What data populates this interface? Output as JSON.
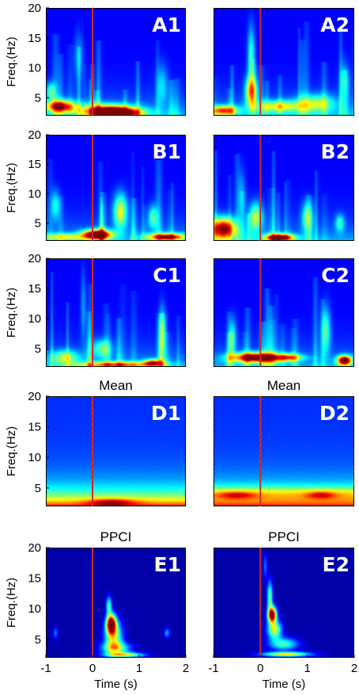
{
  "colors": {
    "background": "#00007f",
    "onset_line": "#cc2a2a",
    "colormap": "jet"
  },
  "axes": {
    "ylabel": "Freq.(Hz)",
    "xlabel": "Time (s)",
    "yticks": [
      5,
      10,
      15,
      20
    ],
    "xticks": [
      -1,
      0,
      1,
      2
    ]
  },
  "chart_data": [
    {
      "id": "A1",
      "type": "heatmap",
      "label": "A1",
      "title": "",
      "xlim": [
        -1,
        2
      ],
      "ylim": [
        2,
        20
      ],
      "onset_x": 0,
      "blobs": [
        {
          "x": 0.5,
          "y": 2.4,
          "sx": 0.5,
          "sy": 0.8,
          "v": 1.0
        },
        {
          "x": -0.7,
          "y": 3.5,
          "sx": 0.3,
          "sy": 1.0,
          "v": 0.75
        },
        {
          "x": -0.9,
          "y": 6,
          "sx": 0.1,
          "sy": 1.5,
          "v": 0.3
        },
        {
          "x": 0.3,
          "y": 3,
          "sx": 0.6,
          "sy": 1.0,
          "v": 0.45
        },
        {
          "x": 1.5,
          "y": 7,
          "sx": 0.12,
          "sy": 3.5,
          "v": 0.2
        },
        {
          "x": -0.3,
          "y": 12,
          "sx": 0.1,
          "sy": 4,
          "v": 0.15
        }
      ]
    },
    {
      "id": "A2",
      "type": "heatmap",
      "label": "A2",
      "title": "",
      "xlim": [
        -1,
        2
      ],
      "ylim": [
        2,
        20
      ],
      "onset_x": 0,
      "blobs": [
        {
          "x": -0.2,
          "y": 6,
          "sx": 0.12,
          "sy": 2.5,
          "v": 0.55
        },
        {
          "x": -0.2,
          "y": 12,
          "sx": 0.08,
          "sy": 5,
          "v": 0.3
        },
        {
          "x": -0.8,
          "y": 2.8,
          "sx": 0.3,
          "sy": 0.8,
          "v": 0.6
        },
        {
          "x": 0.4,
          "y": 3.5,
          "sx": 0.5,
          "sy": 1.0,
          "v": 0.4
        },
        {
          "x": 1.2,
          "y": 4,
          "sx": 0.4,
          "sy": 1.5,
          "v": 0.35
        },
        {
          "x": 1.8,
          "y": 8,
          "sx": 0.1,
          "sy": 3,
          "v": 0.2
        }
      ]
    },
    {
      "id": "B1",
      "type": "heatmap",
      "label": "B1",
      "title": "",
      "xlim": [
        -1,
        2
      ],
      "ylim": [
        2,
        20
      ],
      "onset_x": 0,
      "blobs": [
        {
          "x": 0.1,
          "y": 3,
          "sx": 0.3,
          "sy": 0.8,
          "v": 1.0
        },
        {
          "x": 1.6,
          "y": 2.6,
          "sx": 0.4,
          "sy": 0.6,
          "v": 0.75
        },
        {
          "x": -0.6,
          "y": 2.6,
          "sx": 0.5,
          "sy": 0.6,
          "v": 0.35
        },
        {
          "x": 0.6,
          "y": 7,
          "sx": 0.15,
          "sy": 3,
          "v": 0.45
        },
        {
          "x": -0.8,
          "y": 8,
          "sx": 0.1,
          "sy": 2.5,
          "v": 0.25
        },
        {
          "x": 1.3,
          "y": 6,
          "sx": 0.1,
          "sy": 2,
          "v": 0.3
        }
      ]
    },
    {
      "id": "B2",
      "type": "heatmap",
      "label": "B2",
      "title": "",
      "xlim": [
        -1,
        2
      ],
      "ylim": [
        2,
        20
      ],
      "onset_x": 0,
      "blobs": [
        {
          "x": -0.8,
          "y": 4,
          "sx": 0.25,
          "sy": 1.8,
          "v": 0.85
        },
        {
          "x": 0.4,
          "y": 2.5,
          "sx": 0.3,
          "sy": 0.6,
          "v": 0.9
        },
        {
          "x": -0.1,
          "y": 6,
          "sx": 0.15,
          "sy": 2.5,
          "v": 0.4
        },
        {
          "x": 1.0,
          "y": 6,
          "sx": 0.12,
          "sy": 2.5,
          "v": 0.3
        },
        {
          "x": 1.7,
          "y": 5,
          "sx": 0.1,
          "sy": 1.5,
          "v": 0.25
        },
        {
          "x": -0.4,
          "y": 10,
          "sx": 0.08,
          "sy": 4,
          "v": 0.15
        }
      ]
    },
    {
      "id": "C1",
      "type": "heatmap",
      "label": "C1",
      "title": "",
      "xlim": [
        -1,
        2
      ],
      "ylim": [
        2,
        20
      ],
      "onset_x": 0,
      "blobs": [
        {
          "x": 0.5,
          "y": 2.3,
          "sx": 0.8,
          "sy": 0.5,
          "v": 0.55
        },
        {
          "x": 1.3,
          "y": 2.6,
          "sx": 0.2,
          "sy": 0.6,
          "v": 0.6
        },
        {
          "x": -0.6,
          "y": 3.5,
          "sx": 0.3,
          "sy": 1.2,
          "v": 0.35
        },
        {
          "x": 1.5,
          "y": 8,
          "sx": 0.08,
          "sy": 4,
          "v": 0.3
        },
        {
          "x": 0.2,
          "y": 5,
          "sx": 0.2,
          "sy": 1.5,
          "v": 0.3
        },
        {
          "x": -0.2,
          "y": 12,
          "sx": 0.06,
          "sy": 6,
          "v": 0.15
        }
      ]
    },
    {
      "id": "C2",
      "type": "heatmap",
      "label": "C2",
      "title": "",
      "xlim": [
        -1,
        2
      ],
      "ylim": [
        2,
        20
      ],
      "onset_x": 0,
      "blobs": [
        {
          "x": -0.1,
          "y": 3.5,
          "sx": 0.5,
          "sy": 0.8,
          "v": 0.9
        },
        {
          "x": 1.8,
          "y": 3,
          "sx": 0.15,
          "sy": 0.8,
          "v": 0.95
        },
        {
          "x": 0.6,
          "y": 3.5,
          "sx": 0.3,
          "sy": 0.6,
          "v": 0.5
        },
        {
          "x": -0.6,
          "y": 7,
          "sx": 0.08,
          "sy": 3,
          "v": 0.25
        },
        {
          "x": 1.4,
          "y": 8,
          "sx": 0.1,
          "sy": 4,
          "v": 0.3
        }
      ]
    },
    {
      "id": "D1",
      "type": "heatmap",
      "label": "D1",
      "title": "Mean",
      "xlim": [
        -1,
        2
      ],
      "ylim": [
        2,
        20
      ],
      "onset_x": 0,
      "mode": "mean",
      "shift": 0.0,
      "blobs": [
        {
          "x": 0.4,
          "y": 2.6,
          "sx": 0.5,
          "sy": 0.6,
          "v": 0.3
        }
      ]
    },
    {
      "id": "D2",
      "type": "heatmap",
      "label": "D2",
      "title": "Mean",
      "xlim": [
        -1,
        2
      ],
      "ylim": [
        2,
        20
      ],
      "onset_x": 0,
      "mode": "mean",
      "shift": 0.5,
      "blobs": [
        {
          "x": -0.5,
          "y": 3.8,
          "sx": 0.4,
          "sy": 0.6,
          "v": 0.25
        },
        {
          "x": 1.3,
          "y": 3.8,
          "sx": 0.3,
          "sy": 0.6,
          "v": 0.25
        }
      ]
    },
    {
      "id": "E1",
      "type": "heatmap",
      "label": "E1",
      "title": "PPCI",
      "xlim": [
        -1,
        2
      ],
      "ylim": [
        2,
        20
      ],
      "onset_x": 0,
      "mode": "sparse",
      "blobs": [
        {
          "x": 0.4,
          "y": 7.5,
          "sx": 0.1,
          "sy": 1.5,
          "v": 1.0
        },
        {
          "x": 0.45,
          "y": 5.5,
          "sx": 0.18,
          "sy": 2.5,
          "v": 0.55
        },
        {
          "x": 0.5,
          "y": 3.5,
          "sx": 0.3,
          "sy": 1.0,
          "v": 0.45
        },
        {
          "x": 0.7,
          "y": 2.4,
          "sx": 0.4,
          "sy": 0.4,
          "v": 0.55
        },
        {
          "x": 0.35,
          "y": 10.5,
          "sx": 0.06,
          "sy": 1.5,
          "v": 0.4
        },
        {
          "x": -0.8,
          "y": 6,
          "sx": 0.05,
          "sy": 1.0,
          "v": 0.2
        },
        {
          "x": 1.6,
          "y": 6,
          "sx": 0.06,
          "sy": 0.8,
          "v": 0.25
        }
      ]
    },
    {
      "id": "E2",
      "type": "heatmap",
      "label": "E2",
      "title": "PPCI",
      "xlim": [
        -1,
        2
      ],
      "ylim": [
        2,
        20
      ],
      "onset_x": 0,
      "mode": "sparse",
      "blobs": [
        {
          "x": 0.25,
          "y": 9,
          "sx": 0.09,
          "sy": 1.3,
          "v": 1.0
        },
        {
          "x": 0.2,
          "y": 12,
          "sx": 0.06,
          "sy": 2.5,
          "v": 0.45
        },
        {
          "x": 0.3,
          "y": 6.5,
          "sx": 0.15,
          "sy": 1.5,
          "v": 0.55
        },
        {
          "x": 0.5,
          "y": 4.2,
          "sx": 0.3,
          "sy": 1.0,
          "v": 0.4
        },
        {
          "x": 0.55,
          "y": 2.5,
          "sx": 0.5,
          "sy": 0.4,
          "v": 0.6
        },
        {
          "x": 0.1,
          "y": 17,
          "sx": 0.04,
          "sy": 2,
          "v": 0.2
        }
      ]
    }
  ]
}
